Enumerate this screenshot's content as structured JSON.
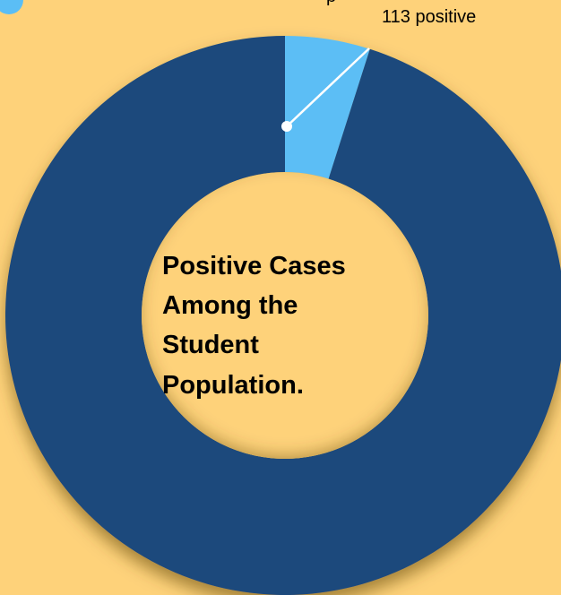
{
  "chart_data": {
    "type": "pie",
    "style": "donut",
    "title_lines": [
      "Positive Cases",
      "Among the",
      "Student",
      "Population."
    ],
    "legend": {
      "placement": "top-left",
      "visible_text": "p"
    },
    "slices": [
      {
        "value": 113,
        "label": "113  positive",
        "color": "#5BBEF5"
      },
      {
        "value": 2187,
        "label": "",
        "color": "#1A4A7C"
      }
    ],
    "grid": false
  },
  "colors": {
    "background": "#FED27A",
    "hole": "#FED27A",
    "title": "#000000",
    "leader": "#FFFFFF",
    "label_text": "#000000",
    "shadow": "#5A3D00"
  }
}
